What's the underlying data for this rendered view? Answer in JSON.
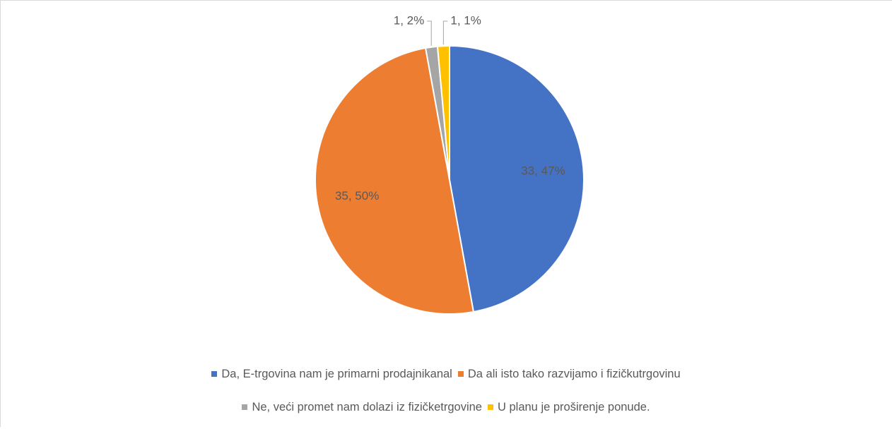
{
  "chart_data": {
    "type": "pie",
    "categories": [
      "Da, E-trgovina nam je primarni prodajnikanal",
      "Da ali isto tako razvijamo i fizičkutrgovinu",
      "Ne, veći promet nam dolazi iz fizičketrgovine",
      "U planu je proširenje ponude."
    ],
    "values": [
      33,
      35,
      1,
      1
    ],
    "value_labels": [
      "33, 47%",
      "35, 50%",
      "1, 2%",
      "1, 1%"
    ],
    "colors": [
      "#4472c4",
      "#ed7d31",
      "#a5a5a5",
      "#ffc000"
    ],
    "legend": "bottom"
  }
}
